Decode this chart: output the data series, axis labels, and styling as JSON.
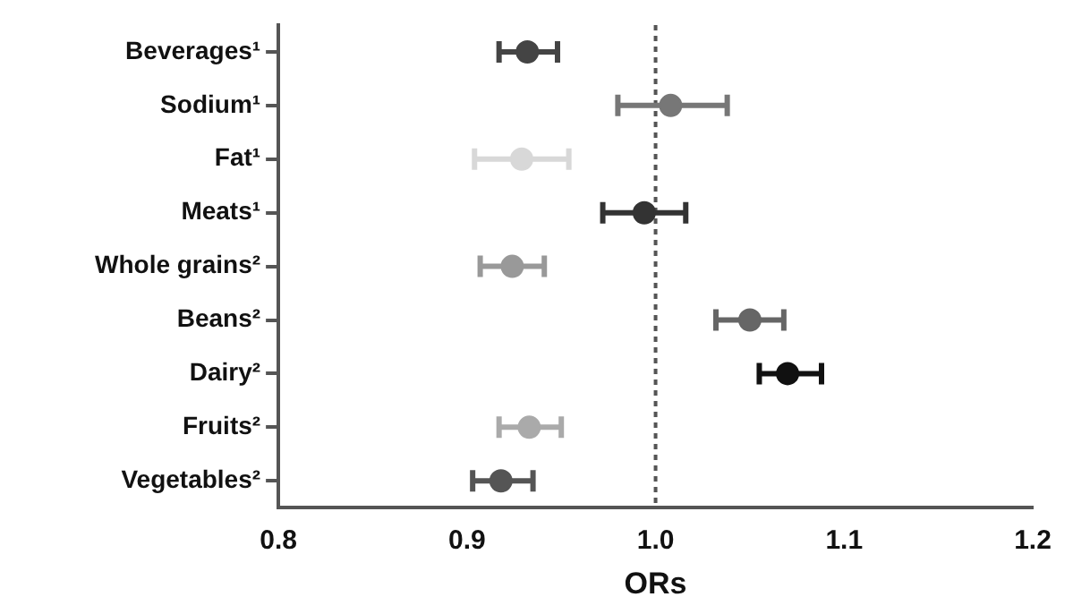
{
  "chart_data": {
    "type": "scatter",
    "orientation": "horizontal",
    "xlabel": "ORs",
    "categories": [
      "Beverages¹",
      "Sodium¹",
      "Fat¹",
      "Meats¹",
      "Whole grains²",
      "Beans²",
      "Dairy²",
      "Fruits²",
      "Vegetables²"
    ],
    "values": [
      0.932,
      1.008,
      0.929,
      0.994,
      0.924,
      1.05,
      1.07,
      0.933,
      0.918
    ],
    "errors": [
      [
        0.917,
        0.948
      ],
      [
        0.98,
        1.038
      ],
      [
        0.904,
        0.954
      ],
      [
        0.972,
        1.016
      ],
      [
        0.907,
        0.941
      ],
      [
        1.032,
        1.068
      ],
      [
        1.055,
        1.088
      ],
      [
        0.917,
        0.95
      ],
      [
        0.903,
        0.935
      ]
    ],
    "colors": [
      "#444444",
      "#777777",
      "#d8d8d8",
      "#333333",
      "#999999",
      "#666666",
      "#111111",
      "#aaaaaa",
      "#555555"
    ],
    "xlim": [
      0.8,
      1.2
    ],
    "xticks": [
      {
        "value": 0.8,
        "label": "0.8"
      },
      {
        "value": 0.9,
        "label": "0.9"
      },
      {
        "value": 1,
        "label": "1.0"
      },
      {
        "value": 1.1,
        "label": "1.1"
      },
      {
        "value": 1.2,
        "label": "1.2"
      }
    ],
    "ref_lines": [
      {
        "axis": "x",
        "value": 1,
        "color": "#555555",
        "line_style": "dotted"
      }
    ],
    "grid": false,
    "legend": false,
    "marker": "circle"
  }
}
